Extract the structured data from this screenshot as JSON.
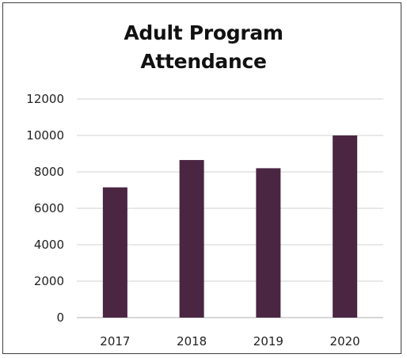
{
  "chart_data": {
    "type": "bar",
    "title_lines": [
      "Adult Program",
      "Attendance"
    ],
    "categories": [
      "2017",
      "2018",
      "2019",
      "2020"
    ],
    "values": [
      7150,
      8650,
      8200,
      10000
    ],
    "xlabel": "",
    "ylabel": "",
    "ylim": [
      0,
      12000
    ],
    "yticks": [
      0,
      2000,
      4000,
      6000,
      8000,
      10000,
      12000
    ],
    "grid": true,
    "legend": "none",
    "colors": {
      "bar": "#4a2642",
      "grid": "#d9d9d9",
      "axis": "#bfbfbf",
      "border": "#404040"
    }
  }
}
